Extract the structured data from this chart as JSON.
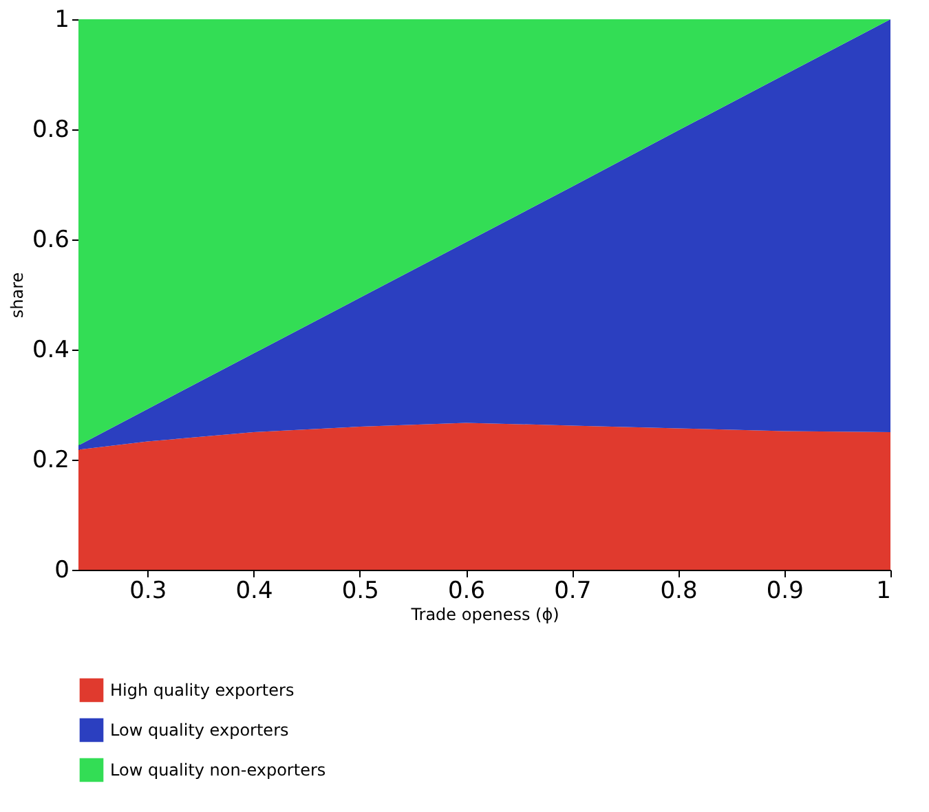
{
  "chart_data": {
    "type": "area",
    "stacked": true,
    "xlabel": "Trade openess (ϕ)",
    "ylabel": "share",
    "x": [
      0.235,
      0.3,
      0.4,
      0.5,
      0.6,
      0.7,
      0.8,
      0.9,
      1
    ],
    "series": [
      {
        "name": "High quality exporters",
        "color": "#e03a2e",
        "values": [
          0.218,
          0.233,
          0.25,
          0.26,
          0.267,
          0.262,
          0.257,
          0.252,
          0.25
        ]
      },
      {
        "name": "Low quality exporters",
        "color": "#2b3fc0",
        "values": [
          0.008,
          0.059,
          0.143,
          0.234,
          0.328,
          0.434,
          0.541,
          0.647,
          0.75
        ]
      },
      {
        "name": "Low quality non-exporters",
        "color": "#33dd55",
        "values": [
          0.774,
          0.708,
          0.607,
          0.506,
          0.405,
          0.304,
          0.202,
          0.101,
          0.0
        ]
      }
    ],
    "xlim": [
      0.235,
      1
    ],
    "xticks": [
      0.3,
      0.4,
      0.5,
      0.6,
      0.7,
      0.8,
      0.9,
      1
    ],
    "ylim": [
      0,
      1
    ],
    "yticks": [
      0,
      0.2,
      0.4,
      0.6,
      0.8,
      1
    ],
    "grid": false,
    "legend": "bottom"
  }
}
